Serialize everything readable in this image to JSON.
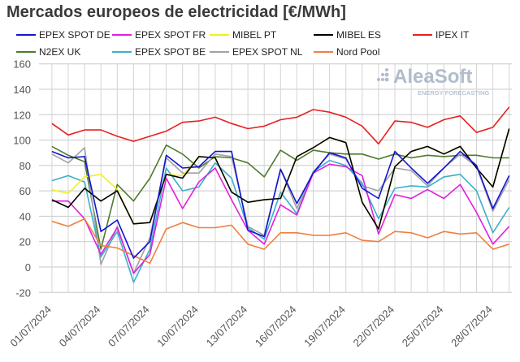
{
  "chart_data": {
    "type": "line",
    "title": "Mercados europeos de electricidad [€/MWh]",
    "xlabel": "",
    "ylabel": "",
    "ylim": [
      -20,
      160
    ],
    "yticks": [
      "-20",
      "0",
      "20",
      "40",
      "60",
      "80",
      "100",
      "120",
      "140",
      "160"
    ],
    "grid": true,
    "legend_placement": "top",
    "x": [
      "01/07/2024",
      "02/07/2024",
      "03/07/2024",
      "04/07/2024",
      "05/07/2024",
      "06/07/2024",
      "07/07/2024",
      "08/07/2024",
      "09/07/2024",
      "10/07/2024",
      "11/07/2024",
      "12/07/2024",
      "13/07/2024",
      "14/07/2024",
      "15/07/2024",
      "16/07/2024",
      "17/07/2024",
      "18/07/2024",
      "19/07/2024",
      "20/07/2024",
      "21/07/2024",
      "22/07/2024",
      "23/07/2024",
      "24/07/2024",
      "25/07/2024",
      "26/07/2024",
      "27/07/2024",
      "28/07/2024",
      "29/07/2024"
    ],
    "xtick_labels": [
      "01/07/2024",
      "04/07/2024",
      "07/07/2024",
      "10/07/2024",
      "13/07/2024",
      "16/07/2024",
      "19/07/2024",
      "22/07/2024",
      "25/07/2024",
      "28/07/2024"
    ],
    "series": [
      {
        "name": "N2EX UK",
        "color": "#4e7a2e",
        "values": [
          95,
          88,
          83,
          14,
          65,
          52,
          70,
          96,
          89,
          78,
          87,
          86,
          82,
          71,
          92,
          84,
          92,
          90,
          89,
          89,
          85,
          89,
          86,
          88,
          87,
          88,
          88,
          86,
          86
        ]
      },
      {
        "name": "EPEX SPOT NL",
        "color": "#a0a0a8",
        "values": [
          89,
          82,
          94,
          2,
          32,
          -5,
          23,
          86,
          74,
          74,
          89,
          87,
          32,
          25,
          77,
          46,
          75,
          89,
          85,
          64,
          60,
          78,
          76,
          64,
          78,
          89,
          79,
          44,
          69
        ]
      },
      {
        "name": "EPEX SPOT BE",
        "color": "#3ab0c8",
        "values": [
          68,
          72,
          67,
          8,
          28,
          -12,
          14,
          78,
          60,
          63,
          82,
          70,
          31,
          22,
          59,
          42,
          75,
          84,
          80,
          66,
          38,
          62,
          64,
          63,
          71,
          73,
          60,
          27,
          47
        ]
      },
      {
        "name": "EPEX SPOT FR",
        "color": "#e020e0",
        "values": [
          52,
          52,
          38,
          10,
          31,
          -5,
          10,
          70,
          46,
          67,
          78,
          53,
          29,
          18,
          49,
          41,
          74,
          81,
          79,
          72,
          26,
          57,
          54,
          61,
          54,
          65,
          43,
          18,
          32
        ]
      },
      {
        "name": "Nord Pool",
        "color": "#f08040",
        "values": [
          36,
          32,
          38,
          17,
          15,
          9,
          3,
          30,
          35,
          31,
          31,
          33,
          18,
          14,
          27,
          27,
          25,
          25,
          27,
          21,
          20,
          28,
          27,
          23,
          28,
          26,
          27,
          14,
          18
        ]
      },
      {
        "name": "MIBEL PT",
        "color": "#f0f020",
        "values": [
          61,
          58,
          71,
          73,
          61,
          34,
          35,
          73,
          72,
          87,
          86,
          59,
          51,
          53,
          54,
          87,
          94,
          102,
          98,
          51,
          30,
          79,
          91,
          95,
          89,
          95,
          78,
          63,
          109
        ]
      },
      {
        "name": "MIBEL ES",
        "color": "#000000",
        "values": [
          53,
          47,
          62,
          52,
          60,
          34,
          35,
          73,
          70,
          87,
          86,
          59,
          51,
          53,
          54,
          87,
          94,
          102,
          98,
          51,
          30,
          79,
          91,
          95,
          89,
          95,
          78,
          63,
          109
        ]
      },
      {
        "name": "EPEX SPOT DE",
        "color": "#1414d0",
        "values": [
          91,
          86,
          87,
          28,
          37,
          7,
          20,
          88,
          78,
          79,
          91,
          91,
          29,
          24,
          77,
          50,
          74,
          90,
          86,
          62,
          54,
          91,
          78,
          66,
          78,
          91,
          80,
          46,
          72
        ]
      },
      {
        "name": "IPEX IT",
        "color": "#e82020",
        "values": [
          113,
          104,
          108,
          108,
          103,
          99,
          103,
          107,
          114,
          115,
          118,
          113,
          109,
          111,
          116,
          118,
          124,
          122,
          118,
          111,
          97,
          115,
          114,
          110,
          116,
          119,
          106,
          110,
          126
        ]
      }
    ],
    "legend_order": [
      "EPEX SPOT DE",
      "EPEX SPOT FR",
      "MIBEL PT",
      "MIBEL ES",
      "IPEX IT",
      "N2EX UK",
      "EPEX SPOT BE",
      "EPEX SPOT NL",
      "Nord Pool"
    ]
  },
  "watermark": {
    "brand": "AleaSoft",
    "tagline": "ENERGY FORECASTING"
  }
}
